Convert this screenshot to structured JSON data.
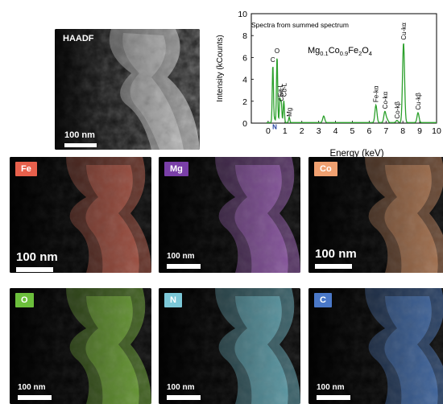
{
  "haadf": {
    "title": "HAADF",
    "scale_label": "100 nm"
  },
  "maps": [
    {
      "element": "Fe",
      "scale_label": "100 nm",
      "label_color": "#e8604c",
      "tint": "#e0705c"
    },
    {
      "element": "Mg",
      "scale_label": "100 nm",
      "label_color": "#7a3fa8",
      "tint": "#c078e0"
    },
    {
      "element": "Co",
      "scale_label": "100 nm",
      "label_color": "#f0a070",
      "tint": "#e8a070"
    },
    {
      "element": "O",
      "scale_label": "100 nm",
      "label_color": "#6cbf3c",
      "tint": "#8fd448"
    },
    {
      "element": "N",
      "scale_label": "100 nm",
      "label_color": "#7cc8d8",
      "tint": "#80d8e8"
    },
    {
      "element": "C",
      "scale_label": "100 nm",
      "label_color": "#4a78c8",
      "tint": "#5a90e0"
    }
  ],
  "chart_data": {
    "type": "line",
    "title": "Spectra from summed spectrum",
    "compound_label": {
      "base": [
        "Mg",
        "Co",
        "Fe",
        "O"
      ],
      "subscripts": [
        "0.1",
        "0.9",
        "2",
        "4"
      ]
    },
    "xlabel": "Energy (keV)",
    "ylabel": "Intensity (kCounts)",
    "xlim": [
      -1,
      10
    ],
    "ylim": [
      0,
      10
    ],
    "xticks": [
      0,
      1,
      2,
      3,
      4,
      5,
      6,
      7,
      8,
      9,
      10
    ],
    "yticks": [
      0,
      2,
      4,
      6,
      8,
      10
    ],
    "line_color": "#2ca02c",
    "peaks": [
      {
        "x": 0.28,
        "y": 5.3
      },
      {
        "x": 0.39,
        "y": 0.3
      },
      {
        "x": 0.53,
        "y": 6.1
      },
      {
        "x": 0.7,
        "y": 2.1
      },
      {
        "x": 0.78,
        "y": 1.8
      },
      {
        "x": 0.93,
        "y": 2.0
      },
      {
        "x": 1.25,
        "y": 0.5
      },
      {
        "x": 3.3,
        "y": 0.6
      },
      {
        "x": 6.4,
        "y": 1.6
      },
      {
        "x": 6.93,
        "y": 1.0
      },
      {
        "x": 7.06,
        "y": 0.3
      },
      {
        "x": 7.65,
        "y": 0.2
      },
      {
        "x": 8.04,
        "y": 7.3
      },
      {
        "x": 8.9,
        "y": 0.9
      }
    ],
    "annotations": [
      {
        "text": "C",
        "x": 0.28,
        "y": 5.6
      },
      {
        "text": "O",
        "x": 0.53,
        "y": 6.4
      },
      {
        "text": "Fe-L",
        "x": 0.71,
        "y": 2.4
      },
      {
        "text": "Cu-L",
        "x": 0.93,
        "y": 2.4
      },
      {
        "text": "Co-L",
        "x": 0.78,
        "y": 2.0
      },
      {
        "text": "Mg",
        "x": 1.25,
        "y": 0.6
      },
      {
        "text": "N",
        "x": 0.39,
        "y": -0.1
      },
      {
        "text": "Fe-kα",
        "x": 6.4,
        "y": 1.9
      },
      {
        "text": "Co-kα",
        "x": 6.93,
        "y": 1.3
      },
      {
        "text": "Co-kβ",
        "x": 7.65,
        "y": 0.4
      },
      {
        "text": "Cu-kα",
        "x": 8.04,
        "y": 7.6
      },
      {
        "text": "Cu-kβ",
        "x": 8.9,
        "y": 1.2
      }
    ]
  }
}
